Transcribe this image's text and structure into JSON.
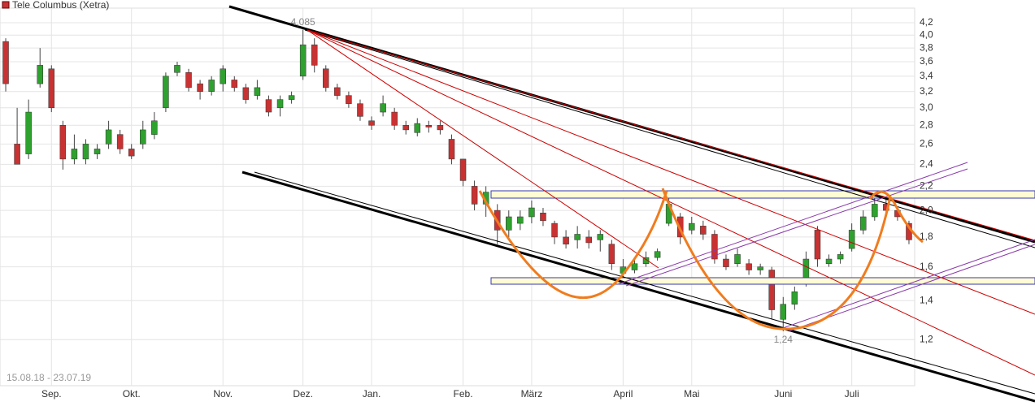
{
  "chart_data": {
    "type": "candlestick",
    "title": "Tele Columbus (Xetra)",
    "date_range": "15.08.18 - 23.07.19",
    "categories": [
      null,
      null,
      null,
      null,
      "Sep.",
      null,
      null,
      null,
      null,
      null,
      null,
      "Okt.",
      null,
      null,
      null,
      null,
      null,
      null,
      null,
      "Nov.",
      null,
      null,
      null,
      null,
      null,
      null,
      "Dez.",
      null,
      null,
      null,
      null,
      null,
      "Jan.",
      null,
      null,
      null,
      null,
      null,
      null,
      null,
      "Feb.",
      null,
      null,
      null,
      null,
      null,
      "März",
      null,
      null,
      null,
      null,
      null,
      null,
      null,
      "April",
      null,
      null,
      null,
      null,
      null,
      "Mai",
      null,
      null,
      null,
      null,
      null,
      null,
      null,
      "Juni",
      null,
      null,
      null,
      null,
      null,
      "Juli",
      null,
      null,
      null,
      null,
      null
    ],
    "open": [
      3.9,
      2.6,
      2.5,
      3.3,
      3.5,
      2.8,
      2.45,
      2.45,
      2.5,
      2.6,
      2.7,
      2.55,
      2.6,
      2.7,
      3.0,
      3.45,
      3.45,
      3.3,
      3.2,
      3.3,
      3.35,
      3.25,
      3.15,
      3.1,
      3.0,
      3.1,
      3.4,
      3.85,
      3.5,
      3.25,
      3.15,
      3.05,
      2.85,
      2.95,
      2.95,
      2.8,
      2.72,
      2.8,
      2.8,
      2.65,
      2.45,
      2.2,
      2.05,
      2.0,
      1.85,
      1.9,
      1.95,
      1.98,
      1.9,
      1.8,
      1.78,
      1.8,
      1.78,
      1.75,
      1.56,
      1.58,
      1.62,
      1.66,
      1.9,
      1.95,
      1.85,
      1.88,
      1.82,
      1.65,
      1.62,
      1.62,
      1.58,
      1.58,
      1.3,
      1.38,
      1.5,
      1.85,
      1.62,
      1.65,
      1.72,
      1.85,
      1.95,
      2.05,
      2.0,
      1.9
    ],
    "high": [
      3.95,
      3.0,
      3.1,
      3.8,
      3.55,
      2.85,
      2.7,
      2.65,
      2.6,
      2.85,
      2.75,
      2.6,
      2.85,
      2.95,
      3.45,
      3.6,
      3.5,
      3.35,
      3.4,
      3.55,
      3.4,
      3.3,
      3.35,
      3.15,
      3.15,
      3.2,
      4.085,
      3.95,
      3.55,
      3.3,
      3.2,
      3.1,
      2.9,
      3.15,
      3.0,
      2.85,
      2.88,
      2.85,
      2.85,
      2.7,
      2.45,
      2.25,
      2.2,
      2.05,
      2.0,
      2.0,
      2.08,
      2.02,
      1.92,
      1.85,
      1.88,
      1.85,
      1.85,
      1.78,
      1.65,
      1.66,
      1.7,
      1.72,
      2.1,
      1.98,
      1.95,
      1.92,
      1.85,
      1.68,
      1.72,
      1.65,
      1.62,
      1.6,
      1.42,
      1.48,
      1.7,
      1.88,
      1.68,
      1.7,
      1.9,
      2.0,
      2.12,
      2.1,
      2.02,
      1.92
    ],
    "low": [
      3.2,
      2.4,
      2.45,
      3.25,
      2.95,
      2.35,
      2.4,
      2.4,
      2.45,
      2.55,
      2.5,
      2.45,
      2.55,
      2.65,
      2.95,
      3.4,
      3.2,
      3.1,
      3.15,
      3.2,
      3.2,
      3.05,
      3.1,
      2.9,
      2.9,
      3.05,
      3.35,
      3.45,
      3.2,
      3.1,
      3.0,
      2.85,
      2.75,
      2.9,
      2.75,
      2.7,
      2.68,
      2.72,
      2.7,
      2.4,
      2.2,
      2.0,
      1.95,
      1.75,
      1.8,
      1.85,
      1.9,
      1.88,
      1.75,
      1.72,
      1.72,
      1.72,
      1.7,
      1.58,
      1.52,
      1.56,
      1.6,
      1.64,
      1.88,
      1.75,
      1.82,
      1.78,
      1.62,
      1.58,
      1.6,
      1.55,
      1.55,
      1.3,
      1.24,
      1.35,
      1.48,
      1.6,
      1.6,
      1.62,
      1.7,
      1.82,
      1.92,
      1.95,
      1.92,
      1.75
    ],
    "close": [
      3.3,
      2.4,
      2.95,
      3.55,
      3.0,
      2.45,
      2.55,
      2.6,
      2.55,
      2.75,
      2.55,
      2.48,
      2.75,
      2.85,
      3.4,
      3.55,
      3.25,
      3.2,
      3.35,
      3.5,
      3.25,
      3.1,
      3.25,
      2.95,
      3.1,
      3.15,
      3.85,
      3.55,
      3.25,
      3.15,
      3.05,
      2.9,
      2.8,
      3.05,
      2.8,
      2.75,
      2.82,
      2.78,
      2.75,
      2.45,
      2.25,
      2.05,
      2.15,
      1.85,
      1.95,
      1.95,
      2.02,
      1.92,
      1.8,
      1.75,
      1.82,
      1.76,
      1.82,
      1.62,
      1.6,
      1.62,
      1.66,
      1.7,
      2.05,
      1.8,
      1.9,
      1.82,
      1.65,
      1.6,
      1.68,
      1.58,
      1.6,
      1.35,
      1.38,
      1.45,
      1.65,
      1.65,
      1.65,
      1.68,
      1.85,
      1.95,
      2.05,
      2.0,
      1.95,
      1.78
    ],
    "colors": {
      "up": "#2ea12e",
      "down": "#c83232"
    },
    "annotations": [
      {
        "value": 4.085,
        "label": "4,085"
      },
      {
        "value": 1.24,
        "label": "1,24"
      }
    ],
    "log_scale": true,
    "grid": true,
    "ylim": [
      1.0,
      4.45
    ],
    "yticks": [
      {
        "value": 1.2,
        "label": "1,2"
      },
      {
        "value": 1.4,
        "label": "1,4"
      },
      {
        "value": 1.6,
        "label": "1,6"
      },
      {
        "value": 1.8,
        "label": "1,8"
      },
      {
        "value": 2.0,
        "label": "2,0"
      },
      {
        "value": 2.2,
        "label": "2,2"
      },
      {
        "value": 2.4,
        "label": "2,4"
      },
      {
        "value": 2.6,
        "label": "2,6"
      },
      {
        "value": 2.8,
        "label": "2,8"
      },
      {
        "value": 3.0,
        "label": "3,0"
      },
      {
        "value": 3.2,
        "label": "3,2"
      },
      {
        "value": 3.4,
        "label": "3,4"
      },
      {
        "value": 3.6,
        "label": "3,6"
      },
      {
        "value": 3.8,
        "label": "3,8"
      },
      {
        "value": 4.0,
        "label": "4,0"
      },
      {
        "value": 4.2,
        "label": "4,2"
      }
    ]
  }
}
